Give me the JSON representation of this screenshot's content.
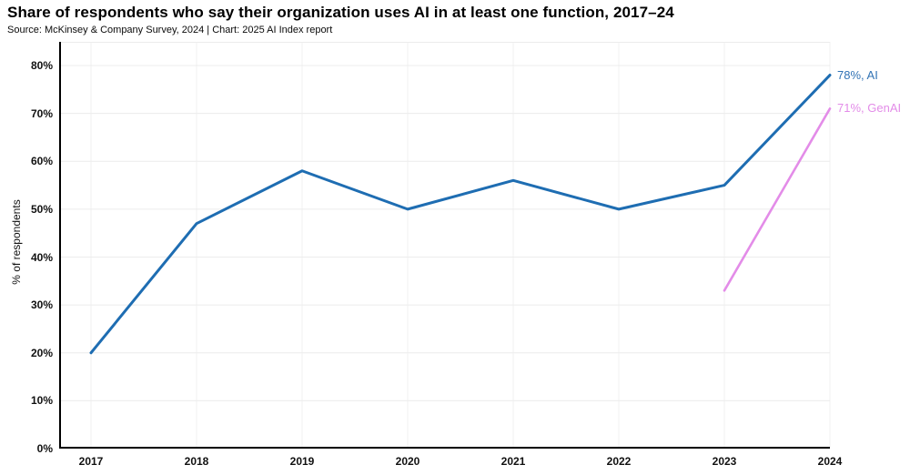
{
  "chart_data": {
    "type": "line",
    "title": "Share of respondents who say their organization uses AI in at least one function, 2017–24",
    "subtitle": "Source: McKinsey & Company Survey, 2024 | Chart: 2025 AI Index report",
    "x": [
      2017,
      2018,
      2019,
      2020,
      2021,
      2022,
      2023,
      2024
    ],
    "xtick_labels": [
      "2017",
      "2018",
      "2019",
      "2020",
      "2021",
      "2022",
      "2023",
      "2024"
    ],
    "series": [
      {
        "name": "AI",
        "x": [
          2017,
          2018,
          2019,
          2020,
          2021,
          2022,
          2023,
          2024
        ],
        "values": [
          20,
          47,
          58,
          50,
          56,
          50,
          55,
          78
        ],
        "color": "#1e6db2",
        "label_color": "#3273b5",
        "end_label": "78%, AI"
      },
      {
        "name": "GenAI",
        "x": [
          2023,
          2024
        ],
        "values": [
          33,
          71
        ],
        "color": "#e38ce8",
        "label_color": "#e38ce8",
        "end_label": "71%, GenAI"
      }
    ],
    "xlabel": "",
    "ylabel": "% of respondents",
    "ylim": [
      0,
      80
    ],
    "ytick_step": 10,
    "ytick_labels": [
      "0%",
      "10%",
      "20%",
      "30%",
      "40%",
      "50%",
      "60%",
      "70%",
      "80%"
    ],
    "grid": "both",
    "h_grid_color": "#ececec",
    "v_grid_color": "#f1f1f1",
    "axis_color": "#000000",
    "legend_position": "line-end-labels"
  }
}
